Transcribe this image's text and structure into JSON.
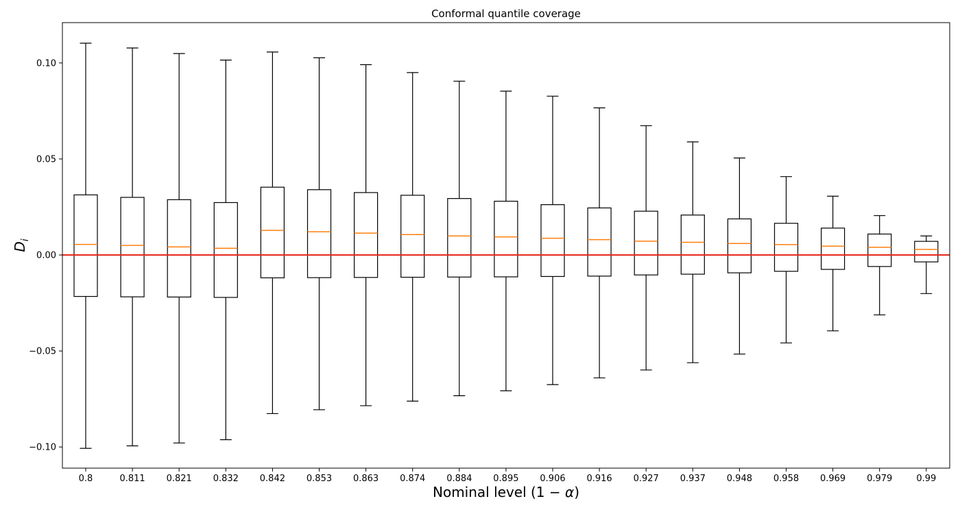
{
  "chart_data": {
    "type": "box",
    "title": "Conformal quantile coverage",
    "xlabel": {
      "prefix": "Nominal level (1 − ",
      "symbol": "α",
      "suffix": ")"
    },
    "ylabel": {
      "base": "D",
      "sub": "i"
    },
    "ylim": [
      -0.111,
      0.121
    ],
    "yticks": [
      -0.1,
      -0.05,
      0.0,
      0.05,
      0.1
    ],
    "ytick_labels": [
      "−0.10",
      "−0.05",
      "0.00",
      "0.05",
      "0.10"
    ],
    "grid": false,
    "reference_line": {
      "y": 0.0,
      "color": "#e8271a"
    },
    "colors": {
      "box": "#000000",
      "median": "#ff7f0e",
      "frame": "#000000"
    },
    "categories": [
      "0.8",
      "0.811",
      "0.821",
      "0.832",
      "0.842",
      "0.853",
      "0.863",
      "0.874",
      "0.884",
      "0.895",
      "0.906",
      "0.916",
      "0.927",
      "0.937",
      "0.948",
      "0.958",
      "0.969",
      "0.979",
      "0.99"
    ],
    "boxes": [
      {
        "whisker_low": -0.1007,
        "q1": -0.0216,
        "median": 0.0055,
        "q3": 0.0313,
        "whisker_high": 0.1103
      },
      {
        "whisker_low": -0.0994,
        "q1": -0.0218,
        "median": 0.005,
        "q3": 0.03,
        "whisker_high": 0.1078
      },
      {
        "whisker_low": -0.0979,
        "q1": -0.0219,
        "median": 0.0042,
        "q3": 0.0288,
        "whisker_high": 0.1049
      },
      {
        "whisker_low": -0.0962,
        "q1": -0.0221,
        "median": 0.0035,
        "q3": 0.0273,
        "whisker_high": 0.1015
      },
      {
        "whisker_low": -0.0826,
        "q1": -0.0119,
        "median": 0.0128,
        "q3": 0.0353,
        "whisker_high": 0.1057
      },
      {
        "whisker_low": -0.0806,
        "q1": -0.0118,
        "median": 0.0121,
        "q3": 0.034,
        "whisker_high": 0.1027
      },
      {
        "whisker_low": -0.0785,
        "q1": -0.0117,
        "median": 0.0114,
        "q3": 0.0325,
        "whisker_high": 0.0991
      },
      {
        "whisker_low": -0.0761,
        "q1": -0.0116,
        "median": 0.0106,
        "q3": 0.0311,
        "whisker_high": 0.095
      },
      {
        "whisker_low": -0.0733,
        "q1": -0.0115,
        "median": 0.0099,
        "q3": 0.0294,
        "whisker_high": 0.0905
      },
      {
        "whisker_low": -0.0707,
        "q1": -0.0114,
        "median": 0.0094,
        "q3": 0.028,
        "whisker_high": 0.0853
      },
      {
        "whisker_low": -0.0675,
        "q1": -0.0112,
        "median": 0.0087,
        "q3": 0.0262,
        "whisker_high": 0.0827
      },
      {
        "whisker_low": -0.064,
        "q1": -0.011,
        "median": 0.008,
        "q3": 0.0245,
        "whisker_high": 0.0766
      },
      {
        "whisker_low": -0.0599,
        "q1": -0.0104,
        "median": 0.0072,
        "q3": 0.0228,
        "whisker_high": 0.0673
      },
      {
        "whisker_low": -0.0561,
        "q1": -0.01,
        "median": 0.0066,
        "q3": 0.0208,
        "whisker_high": 0.0589
      },
      {
        "whisker_low": -0.0516,
        "q1": -0.0093,
        "median": 0.006,
        "q3": 0.0188,
        "whisker_high": 0.0505
      },
      {
        "whisker_low": -0.0458,
        "q1": -0.0085,
        "median": 0.0054,
        "q3": 0.0165,
        "whisker_high": 0.0408
      },
      {
        "whisker_low": -0.0395,
        "q1": -0.0075,
        "median": 0.0046,
        "q3": 0.014,
        "whisker_high": 0.0306
      },
      {
        "whisker_low": -0.0312,
        "q1": -0.006,
        "median": 0.004,
        "q3": 0.0109,
        "whisker_high": 0.0205
      },
      {
        "whisker_low": -0.0201,
        "q1": -0.0036,
        "median": 0.0029,
        "q3": 0.0071,
        "whisker_high": 0.0099
      }
    ]
  }
}
